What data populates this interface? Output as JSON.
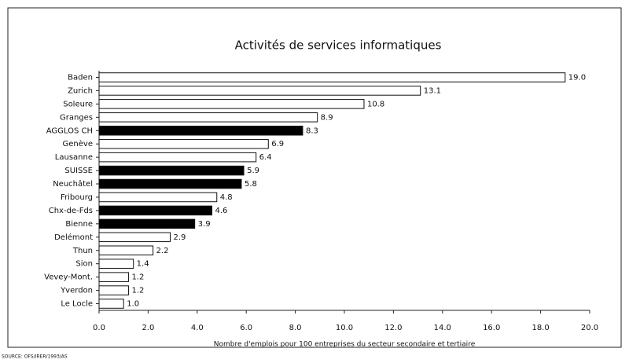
{
  "chart_data": {
    "type": "barh",
    "title": "Activités de services informatiques",
    "categories": [
      "Baden",
      "Zurich",
      "Soleure",
      "Granges",
      "AGGLOS CH",
      "Genève",
      "Lausanne",
      "SUISSE",
      "Neuchâtel",
      "Fribourg",
      "Chx-de-Fds",
      "Bienne",
      "Delémont",
      "Thun",
      "Sion",
      "Vevey-Mont.",
      "Yverdon",
      "Le Locle"
    ],
    "values": [
      19.0,
      13.1,
      10.8,
      8.9,
      8.3,
      6.9,
      6.4,
      5.9,
      5.8,
      4.8,
      4.6,
      3.9,
      2.9,
      2.2,
      1.4,
      1.2,
      1.2,
      1.0
    ],
    "value_labels": [
      "19.0",
      "13.1",
      "10.8",
      "8.9",
      "8.3",
      "6.9",
      "6.4",
      "5.9",
      "5.8",
      "4.8",
      "4.6",
      "3.9",
      "2.9",
      "2.2",
      "1.4",
      "1.2",
      "1.2",
      "1.0"
    ],
    "colors": [
      "#ffffff",
      "#ffffff",
      "#ffffff",
      "#ffffff",
      "#000000",
      "#ffffff",
      "#ffffff",
      "#000000",
      "#000000",
      "#ffffff",
      "#000000",
      "#000000",
      "#ffffff",
      "#ffffff",
      "#ffffff",
      "#ffffff",
      "#ffffff",
      "#ffffff"
    ],
    "xlim": [
      0,
      20
    ],
    "xticks": [
      {
        "value": 0,
        "label": "0.0"
      },
      {
        "value": 2,
        "label": "2.0"
      },
      {
        "value": 4,
        "label": "4.0"
      },
      {
        "value": 6,
        "label": "6.0"
      },
      {
        "value": 8,
        "label": "8.0"
      },
      {
        "value": 10,
        "label": "10.0"
      },
      {
        "value": 12,
        "label": "12.0"
      },
      {
        "value": 14,
        "label": "14.0"
      },
      {
        "value": 16,
        "label": "16.0"
      },
      {
        "value": 18,
        "label": "18.0"
      },
      {
        "value": 20,
        "label": "20.0"
      }
    ],
    "xlabel": "Nombre d'emplois pour 100 entreprises du secteur secondaire et tertiaire",
    "source": "SOURCE: OFS/IRER/1993/AS"
  }
}
